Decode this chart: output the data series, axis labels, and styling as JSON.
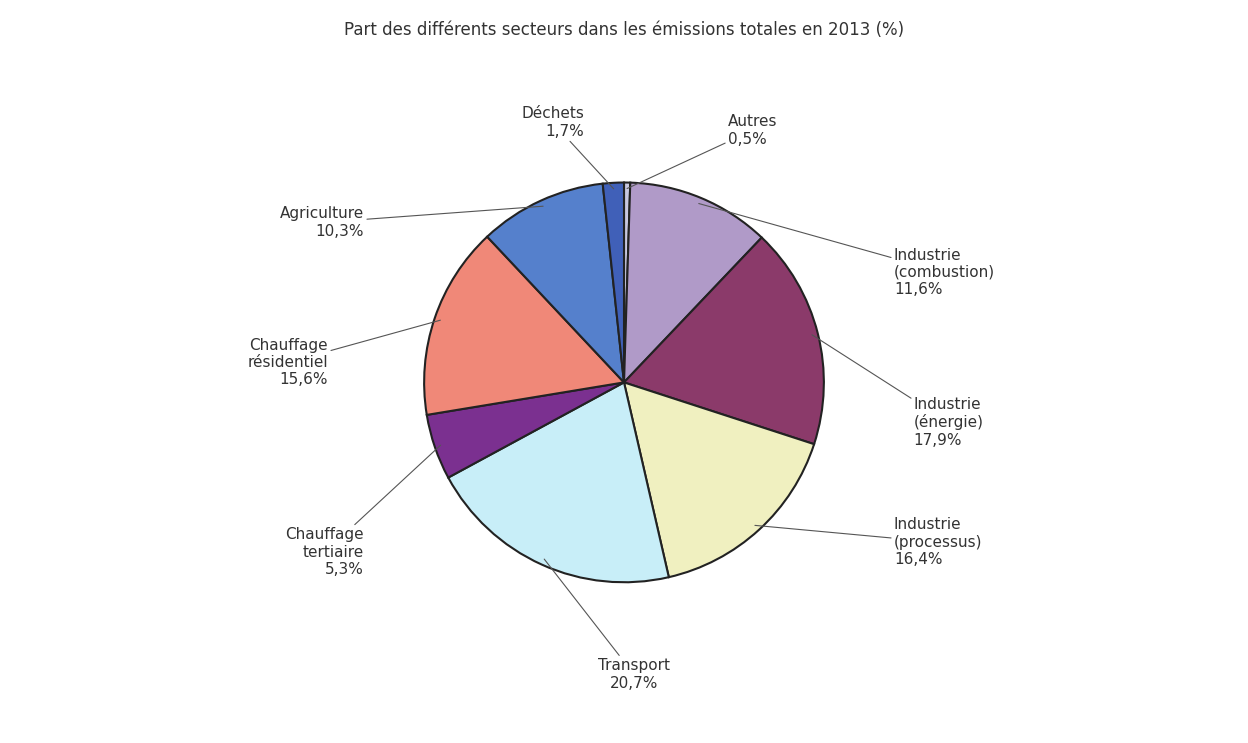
{
  "title": "Part des différents secteurs dans les émissions totales en 2013 (%)",
  "segments": [
    {
      "label": "Autres\n0,5%",
      "value": 0.5,
      "color": "#c8c8e0",
      "ha": "left",
      "va": "bottom",
      "xt": 0.52,
      "yt": 1.18
    },
    {
      "label": "Industrie\n(combustion)\n11,6%",
      "value": 11.6,
      "color": "#b09ac8",
      "ha": "left",
      "va": "center",
      "xt": 1.35,
      "yt": 0.55
    },
    {
      "label": "Industrie\n(énergie)\n17,9%",
      "value": 17.9,
      "color": "#8b3a6a",
      "ha": "left",
      "va": "center",
      "xt": 1.45,
      "yt": -0.2
    },
    {
      "label": "Industrie\n(processus)\n16,4%",
      "value": 16.4,
      "color": "#f0f0c0",
      "ha": "left",
      "va": "center",
      "xt": 1.35,
      "yt": -0.8
    },
    {
      "label": "Transport\n20,7%",
      "value": 20.7,
      "color": "#c8eef8",
      "ha": "center",
      "va": "top",
      "xt": 0.05,
      "yt": -1.38
    },
    {
      "label": "Chauffage\ntertiaire\n5,3%",
      "value": 5.3,
      "color": "#7b3090",
      "ha": "right",
      "va": "center",
      "xt": -1.3,
      "yt": -0.85
    },
    {
      "label": "Chauffage\nrésidentiel\n15,6%",
      "value": 15.6,
      "color": "#f08878",
      "ha": "right",
      "va": "center",
      "xt": -1.48,
      "yt": 0.1
    },
    {
      "label": "Agriculture\n10,3%",
      "value": 10.3,
      "color": "#5580cc",
      "ha": "right",
      "va": "center",
      "xt": -1.3,
      "yt": 0.8
    },
    {
      "label": "Déchets\n1,7%",
      "value": 1.7,
      "color": "#4060b8",
      "ha": "right",
      "va": "bottom",
      "xt": -0.2,
      "yt": 1.22
    }
  ],
  "title_fontsize": 12,
  "label_fontsize": 11,
  "background_color": "#ffffff",
  "border_color": "#222222",
  "border_width": 1.5
}
